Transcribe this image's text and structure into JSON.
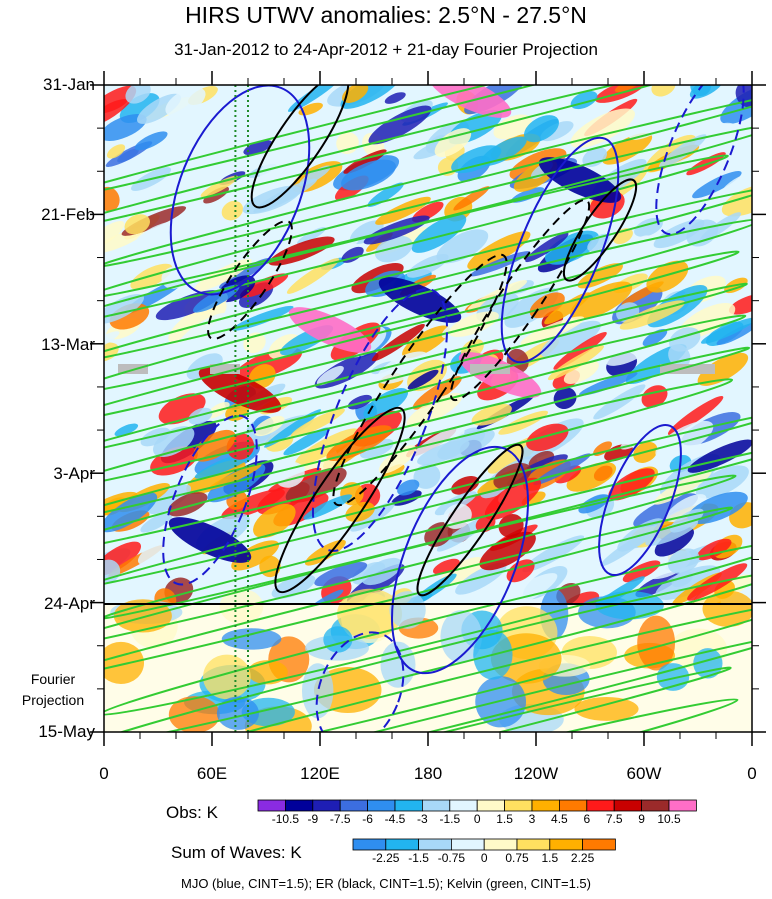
{
  "chart_data": {
    "type": "heatmap",
    "title": "HIRS UTWV anomalies: 2.5°N - 27.5°N",
    "subtitle": "31-Jan-2012 to 24-Apr-2012 + 21-day Fourier Projection",
    "y_tick_labels": [
      "31-Jan",
      "21-Feb",
      "13-Mar",
      "3-Apr",
      "24-Apr",
      "15-May"
    ],
    "x_tick_labels": [
      "0",
      "60E",
      "120E",
      "180",
      "120W",
      "60W",
      "0"
    ],
    "x_range_degrees_east": [
      0,
      360
    ],
    "y_range": [
      "31-Jan",
      "15-May"
    ],
    "y_inverted": true,
    "forecast_start": "24-Apr",
    "forecast_label": [
      "Fourier",
      "Projection"
    ],
    "obs_legend": {
      "label": "Obs: K",
      "levels": [
        "-10.5",
        "-9",
        "-7.5",
        "-6",
        "-4.5",
        "-3",
        "-1.5",
        "0",
        "1.5",
        "3",
        "4.5",
        "6",
        "7.5",
        "9",
        "10.5"
      ],
      "colors": [
        "#8a2be2",
        "#00009a",
        "#1e1eb4",
        "#3c6ee0",
        "#2f8ef0",
        "#22b4f0",
        "#a8d8f8",
        "#e2f6ff",
        "#fffac8",
        "#ffe060",
        "#ffb000",
        "#ff7a00",
        "#ff1a1a",
        "#c80000",
        "#9b2a2a",
        "#ff6ec7"
      ]
    },
    "waves_legend": {
      "label": "Sum of Waves: K",
      "levels": [
        "-2.25",
        "-1.5",
        "-0.75",
        "0",
        "0.75",
        "1.5",
        "2.25"
      ],
      "colors": [
        "#2f8ef0",
        "#22b4f0",
        "#a8d8f8",
        "#e2f6ff",
        "#fffac8",
        "#ffe060",
        "#ffb000",
        "#ff7a00"
      ]
    },
    "contour_legend": "MJO (blue, CINT=1.5); ER (black, CINT=1.5); Kelvin (green, CINT=1.5)",
    "reference_longitudes_dotted": [
      73,
      80
    ],
    "contour_colors": {
      "mjo": "#1a1ad0",
      "er": "#000000",
      "kelvin": "#33cc33"
    }
  }
}
